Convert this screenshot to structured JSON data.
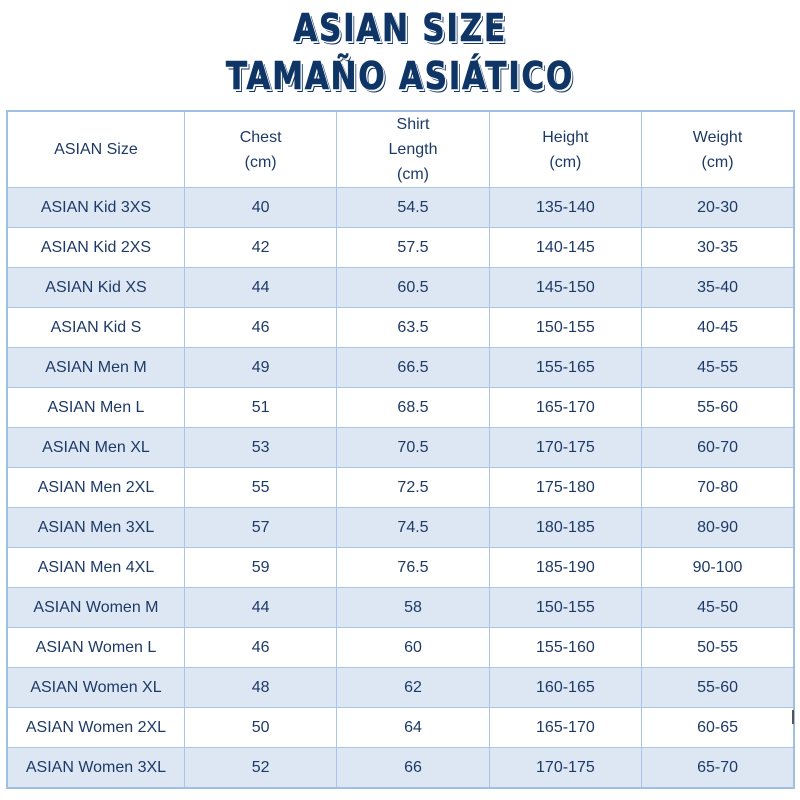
{
  "title": {
    "line1": "ASIAN SIZE",
    "line2": "TAMAÑO ASIÁTICO"
  },
  "colors": {
    "title": "#0f3566",
    "text": "#1d3a66",
    "row_alt": "#dde7f4",
    "border": "#a9c6e8"
  },
  "table": {
    "headers": [
      {
        "lines": [
          "ASIAN Size"
        ]
      },
      {
        "lines": [
          "Chest",
          "(cm)"
        ]
      },
      {
        "lines": [
          "Shirt",
          "Length",
          "(cm)"
        ]
      },
      {
        "lines": [
          "Height",
          "(cm)"
        ]
      },
      {
        "lines": [
          "Weight",
          "(cm)"
        ]
      }
    ],
    "rows": [
      [
        "ASIAN Kid 3XS",
        "40",
        "54.5",
        "135-140",
        "20-30"
      ],
      [
        "ASIAN Kid 2XS",
        "42",
        "57.5",
        "140-145",
        "30-35"
      ],
      [
        "ASIAN Kid XS",
        "44",
        "60.5",
        "145-150",
        "35-40"
      ],
      [
        "ASIAN Kid S",
        "46",
        "63.5",
        "150-155",
        "40-45"
      ],
      [
        "ASIAN Men M",
        "49",
        "66.5",
        "155-165",
        "45-55"
      ],
      [
        "ASIAN Men L",
        "51",
        "68.5",
        "165-170",
        "55-60"
      ],
      [
        "ASIAN Men XL",
        "53",
        "70.5",
        "170-175",
        "60-70"
      ],
      [
        "ASIAN Men 2XL",
        "55",
        "72.5",
        "175-180",
        "70-80"
      ],
      [
        "ASIAN Men 3XL",
        "57",
        "74.5",
        "180-185",
        "80-90"
      ],
      [
        "ASIAN Men 4XL",
        "59",
        "76.5",
        "185-190",
        "90-100"
      ],
      [
        "ASIAN Women M",
        "44",
        "58",
        "150-155",
        "45-50"
      ],
      [
        "ASIAN Women L",
        "46",
        "60",
        "155-160",
        "50-55"
      ],
      [
        "ASIAN Women XL",
        "48",
        "62",
        "160-165",
        "55-60"
      ],
      [
        "ASIAN Women 2XL",
        "50",
        "64",
        "165-170",
        "60-65"
      ],
      [
        "ASIAN Women 3XL",
        "52",
        "66",
        "170-175",
        "65-70"
      ]
    ]
  }
}
